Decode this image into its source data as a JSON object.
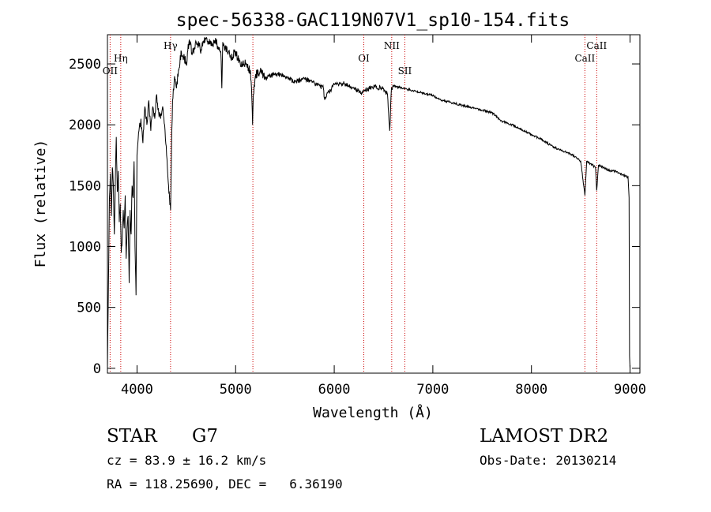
{
  "chart_data": {
    "type": "line",
    "title": "spec-56338-GAC119N07V1_sp10-154.fits",
    "xlabel": "Wavelength (Å)",
    "ylabel": "Flux (relative)",
    "xlim": [
      3700,
      9100
    ],
    "ylim": [
      -40,
      2740
    ],
    "x_ticks": [
      4000,
      5000,
      6000,
      7000,
      8000,
      9000
    ],
    "y_ticks": [
      0,
      500,
      1000,
      1500,
      2000,
      2500
    ],
    "grid": false,
    "line_color": "#000000",
    "marker_color": "#cc0000",
    "series": [
      {
        "x": [
          3700,
          3710,
          3720,
          3730,
          3740,
          3750,
          3760,
          3770,
          3780,
          3790,
          3800,
          3810,
          3820,
          3830,
          3840,
          3850,
          3860,
          3870,
          3880,
          3890,
          3900,
          3910,
          3920,
          3930,
          3940,
          3950,
          3960,
          3970,
          3980,
          3990,
          4000,
          4020,
          4040,
          4060,
          4080,
          4100,
          4120,
          4140,
          4160,
          4180,
          4200,
          4220,
          4240,
          4260,
          4280,
          4300,
          4320,
          4330,
          4340,
          4350,
          4360,
          4380,
          4400,
          4420,
          4450,
          4480,
          4500,
          4530,
          4560,
          4600,
          4650,
          4700,
          4750,
          4800,
          4850,
          4860,
          4870,
          4900,
          4950,
          5000,
          5050,
          5100,
          5150,
          5165,
          5172,
          5180,
          5200,
          5250,
          5300,
          5400,
          5500,
          5600,
          5700,
          5800,
          5890,
          5900,
          6000,
          6100,
          6200,
          6280,
          6300,
          6400,
          6500,
          6540,
          6563,
          6580,
          6600,
          6700,
          6800,
          6900,
          7000,
          7100,
          7200,
          7300,
          7400,
          7500,
          7600,
          7700,
          7800,
          7900,
          8000,
          8100,
          8200,
          8300,
          8400,
          8480,
          8500,
          8542,
          8560,
          8600,
          8650,
          8662,
          8680,
          8700,
          8750,
          8800,
          8850,
          8900,
          8950,
          8980,
          8990,
          8995,
          9000
        ],
        "y": [
          0,
          650,
          1400,
          1600,
          1250,
          1650,
          1500,
          1100,
          1550,
          1900,
          1450,
          1620,
          1200,
          1350,
          950,
          1050,
          1300,
          1150,
          1420,
          900,
          1150,
          1250,
          700,
          1300,
          1100,
          1500,
          1400,
          1700,
          1000,
          600,
          1750,
          1950,
          2050,
          1850,
          2150,
          2000,
          2200,
          1950,
          2150,
          2050,
          2250,
          2100,
          2050,
          2150,
          2000,
          1750,
          1500,
          1400,
          1300,
          1800,
          2200,
          2400,
          2300,
          2450,
          2600,
          2550,
          2500,
          2700,
          2580,
          2680,
          2620,
          2710,
          2650,
          2690,
          2600,
          2300,
          2680,
          2620,
          2550,
          2600,
          2480,
          2500,
          2450,
          2200,
          2000,
          2250,
          2400,
          2450,
          2380,
          2420,
          2400,
          2350,
          2380,
          2340,
          2300,
          2220,
          2330,
          2340,
          2300,
          2260,
          2280,
          2310,
          2300,
          2250,
          1950,
          2300,
          2320,
          2300,
          2280,
          2260,
          2240,
          2200,
          2180,
          2160,
          2140,
          2120,
          2100,
          2030,
          2000,
          1960,
          1920,
          1880,
          1830,
          1790,
          1760,
          1720,
          1700,
          1420,
          1700,
          1680,
          1650,
          1460,
          1670,
          1660,
          1640,
          1620,
          1620,
          1600,
          1580,
          1570,
          1400,
          100,
          0
        ]
      }
    ],
    "line_markers": [
      {
        "label": "OII",
        "x": 3727,
        "level": 3
      },
      {
        "label": "Hη",
        "x": 3835,
        "level": 2
      },
      {
        "label": "Hγ",
        "x": 4340,
        "level": 1
      },
      {
        "label": "",
        "x": 5175,
        "level": 0
      },
      {
        "label": "OI",
        "x": 6300,
        "level": 2
      },
      {
        "label": "NII",
        "x": 6583,
        "level": 1
      },
      {
        "label": "SII",
        "x": 6716,
        "level": 3
      },
      {
        "label": "CaII",
        "x": 8542,
        "level": 2
      },
      {
        "label": "CaII",
        "x": 8662,
        "level": 1
      }
    ]
  },
  "info": {
    "object_type": "STAR",
    "subclass": "G7",
    "cz": "cz = 83.9 ± 16.2 km/s",
    "coords": "RA = 118.25690, DEC =   6.36190",
    "survey": "LAMOST DR2",
    "obs_date": "Obs-Date: 20130214"
  }
}
